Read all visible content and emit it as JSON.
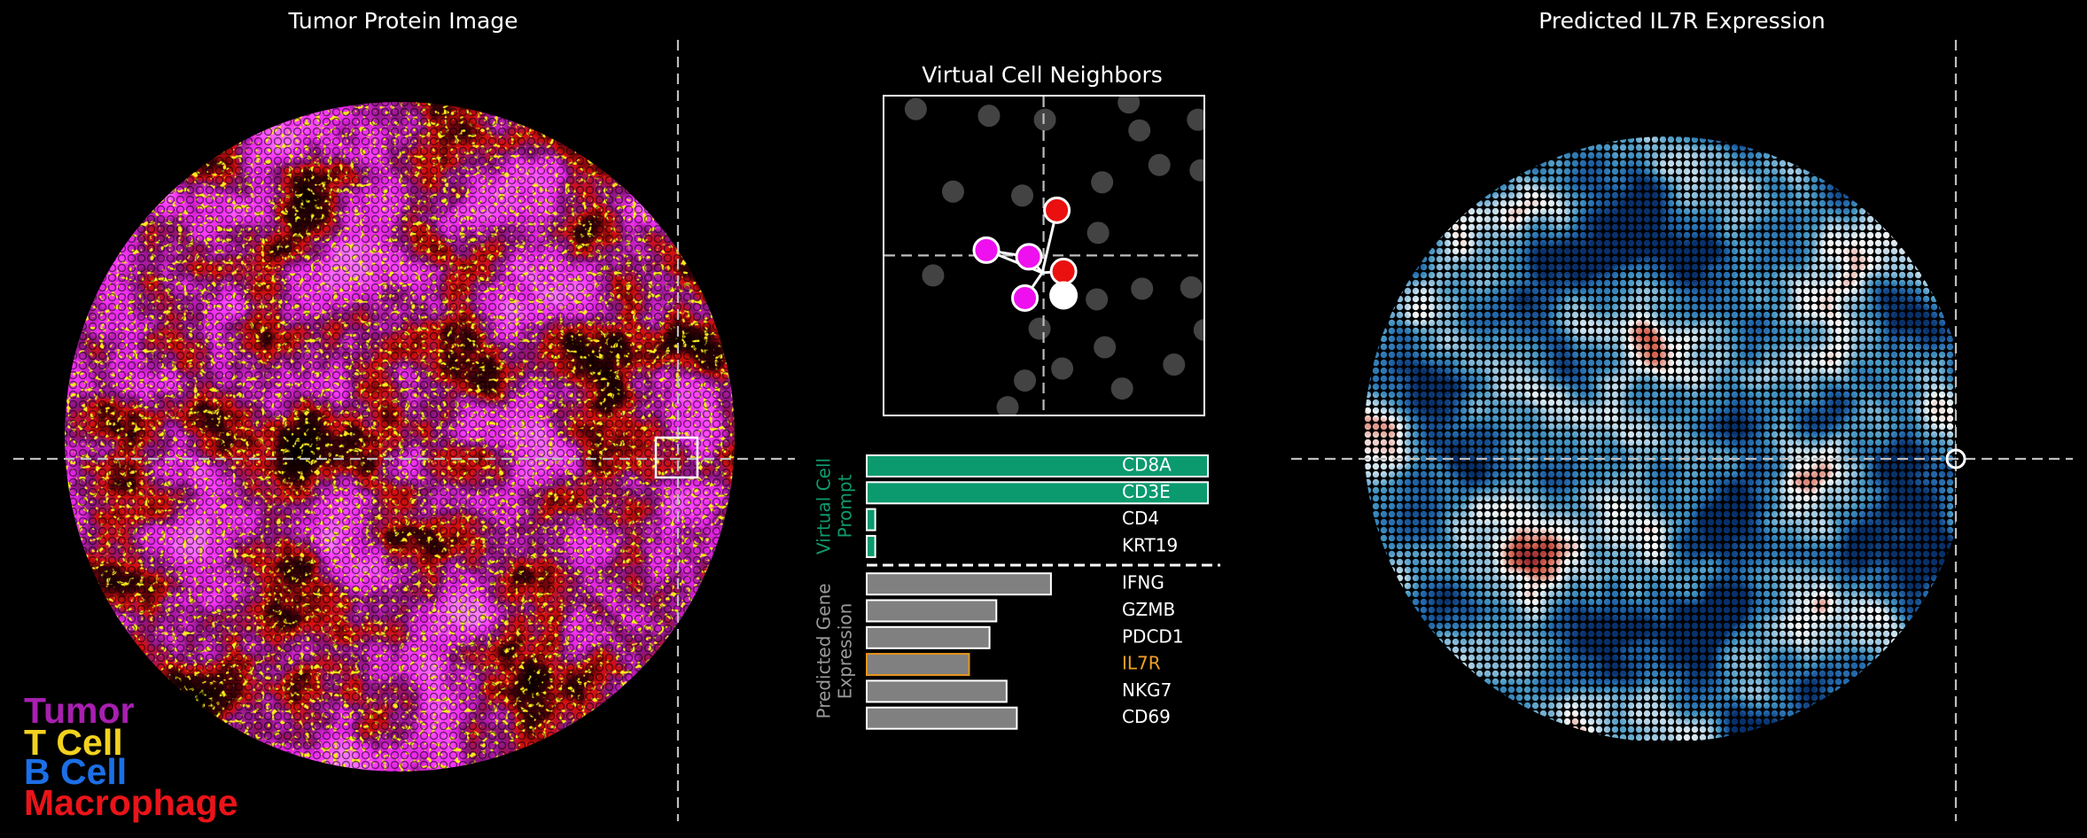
{
  "left_panel": {
    "title": "Tumor Protein Image",
    "legend": [
      {
        "label": "Tumor",
        "color": "#a81fb0"
      },
      {
        "label": "T Cell",
        "color": "#f2d21e"
      },
      {
        "label": "B Cell",
        "color": "#1c6fe6"
      },
      {
        "label": "Macrophage",
        "color": "#ea1419"
      }
    ]
  },
  "neighbors_panel": {
    "title": "Virtual Cell Neighbors"
  },
  "right_panel": {
    "title": "Predicted IL7R Expression"
  },
  "chart_data": {
    "type": "bar",
    "orientation": "horizontal",
    "xlim": [
      0,
      1
    ],
    "groups": [
      {
        "label": [
          "Virtual Cell",
          "Prompt"
        ],
        "color": "#0f9a6e",
        "categories": [
          "CD8A",
          "CD3E",
          "CD4",
          "KRT19"
        ],
        "values": [
          1.0,
          1.0,
          0.025,
          0.025
        ],
        "colors": [
          "#0a9a6e",
          "#0a9a6e",
          "#0a9a6e",
          "#0a9a6e"
        ],
        "edgecolors": [
          "#ffffff",
          "#ffffff",
          "#ffffff",
          "#ffffff"
        ],
        "label_colors": [
          "#ffffff",
          "#ffffff",
          "#ffffff",
          "#ffffff"
        ]
      },
      {
        "label": [
          "Predicted Gene",
          "Expression"
        ],
        "color": "#9a9a9a",
        "categories": [
          "IFNG",
          "GZMB",
          "PDCD1",
          "IL7R",
          "NKG7",
          "CD69"
        ],
        "values": [
          0.54,
          0.38,
          0.36,
          0.3,
          0.41,
          0.44
        ],
        "colors": [
          "#808080",
          "#808080",
          "#808080",
          "#808080",
          "#808080",
          "#808080"
        ],
        "edgecolors": [
          "#ffffff",
          "#ffffff",
          "#ffffff",
          "#e8951c",
          "#ffffff",
          "#ffffff"
        ],
        "label_colors": [
          "#ffffff",
          "#ffffff",
          "#ffffff",
          "#f2a024",
          "#ffffff",
          "#ffffff"
        ]
      }
    ]
  }
}
